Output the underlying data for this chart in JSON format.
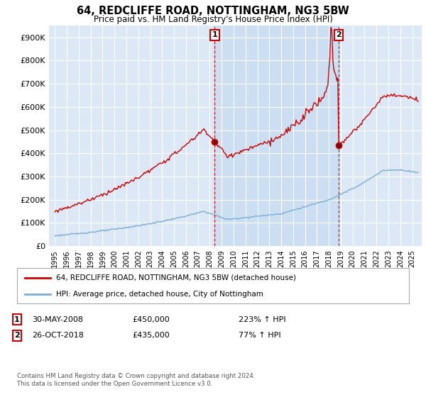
{
  "title": "64, REDCLIFFE ROAD, NOTTINGHAM, NG3 5BW",
  "subtitle": "Price paid vs. HM Land Registry's House Price Index (HPI)",
  "legend_label_red": "64, REDCLIFFE ROAD, NOTTINGHAM, NG3 5BW (detached house)",
  "legend_label_blue": "HPI: Average price, detached house, City of Nottingham",
  "annotation1_date": "30-MAY-2008",
  "annotation1_price": "£450,000",
  "annotation1_hpi": "223% ↑ HPI",
  "annotation2_date": "26-OCT-2018",
  "annotation2_price": "£435,000",
  "annotation2_hpi": "77% ↑ HPI",
  "footer": "Contains HM Land Registry data © Crown copyright and database right 2024.\nThis data is licensed under the Open Government Licence v3.0.",
  "sale1_year": 2008.417,
  "sale1_price": 450000,
  "sale2_year": 2018.833,
  "sale2_price": 435000,
  "ylim": [
    0,
    950000
  ],
  "yticks": [
    0,
    100000,
    200000,
    300000,
    400000,
    500000,
    600000,
    700000,
    800000,
    900000
  ],
  "ytick_labels": [
    "£0",
    "£100K",
    "£200K",
    "£300K",
    "£400K",
    "£500K",
    "£600K",
    "£700K",
    "£800K",
    "£900K"
  ],
  "red_color": "#cc0000",
  "blue_color": "#7aaed6",
  "vline_color": "#cc0000",
  "background_color": "#ffffff",
  "plot_bg_color": "#dce8f5",
  "highlight_bg_color": "#c8dcf0",
  "grid_color": "#ffffff",
  "annotation_box_color": "#cc0000",
  "xlim_left": 1994.5,
  "xlim_right": 2025.8
}
